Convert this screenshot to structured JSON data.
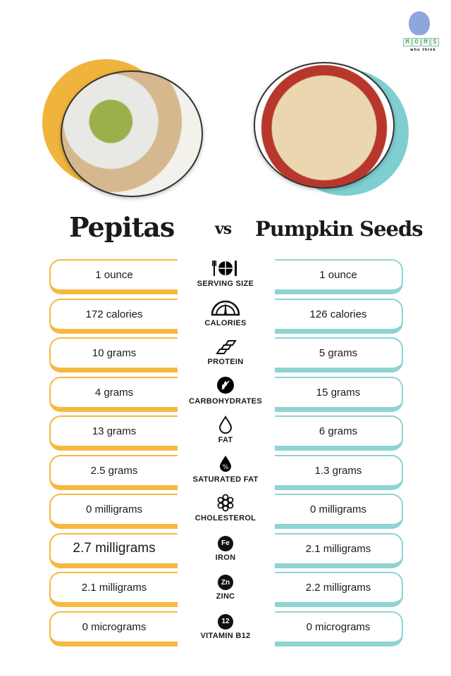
{
  "logo": {
    "letters": [
      "M",
      "O",
      "M",
      "S"
    ],
    "tagline": "who think"
  },
  "header": {
    "left_title": "Pepitas",
    "vs": "vs",
    "right_title": "Pumpkin Seeds"
  },
  "colors": {
    "left_accent": "#f5b942",
    "right_accent": "#8fd3d3"
  },
  "rows": [
    {
      "label": "SERVING SIZE",
      "icon": "plate-cutlery-icon",
      "left": "1 ounce",
      "right": "1 ounce"
    },
    {
      "label": "CALORIES",
      "icon": "gauge-icon",
      "left": "172 calories",
      "right": "126 calories"
    },
    {
      "label": "PROTEIN",
      "icon": "protein-strand-icon",
      "left": "10 grams",
      "right": "5 grams"
    },
    {
      "label": "CARBOHYDRATES",
      "icon": "wheat-icon",
      "left": "4 grams",
      "right": "15 grams"
    },
    {
      "label": "FAT",
      "icon": "drop-icon",
      "left": "13 grams",
      "right": "6 grams"
    },
    {
      "label": "SATURATED FAT",
      "icon": "percent-drop-icon",
      "left": "2.5 grams",
      "right": "1.3 grams"
    },
    {
      "label": "CHOLESTEROL",
      "icon": "molecule-icon",
      "left": "0 milligrams",
      "right": "0 milligrams"
    },
    {
      "label": "IRON",
      "icon": "fe-icon",
      "symbol": "Fe",
      "left": "2.7 milligrams",
      "right": "2.1 milligrams"
    },
    {
      "label": "ZINC",
      "icon": "zn-icon",
      "symbol": "Zn",
      "left": "2.1 milligrams",
      "right": "2.2 milligrams"
    },
    {
      "label": "VITAMIN B12",
      "icon": "b12-icon",
      "symbol": "12",
      "left": "0 micrograms",
      "right": "0 micrograms"
    }
  ]
}
